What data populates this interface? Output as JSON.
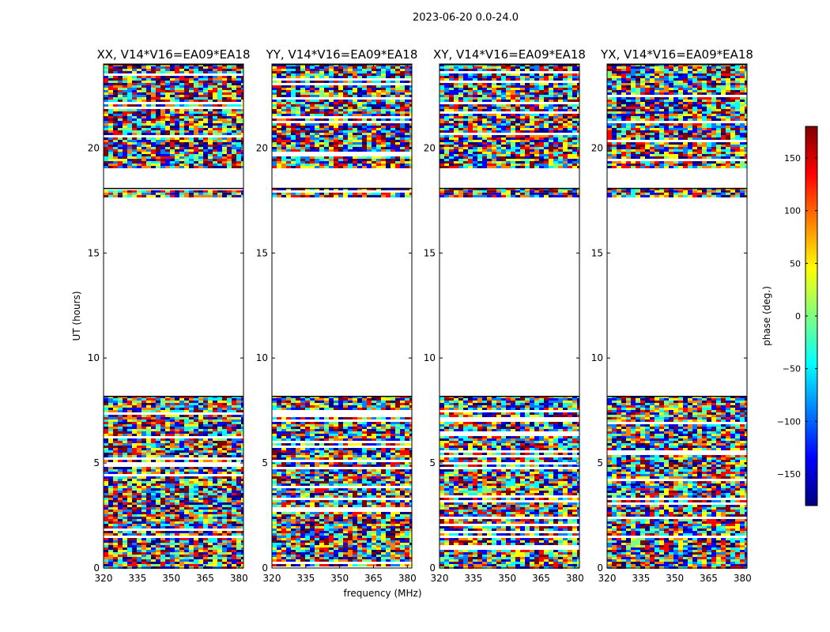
{
  "chart_data": {
    "type": "heatmap",
    "suptitle": "2023-06-20 0.0-24.0",
    "xlabel": "frequency (MHz)",
    "ylabel": "UT (hours)",
    "xlim": [
      320,
      382
    ],
    "ylim": [
      0,
      24
    ],
    "xticks": [
      320,
      335,
      350,
      365,
      380
    ],
    "yticks": [
      0,
      5,
      10,
      15,
      20
    ],
    "panels": [
      {
        "title": "XX, V14*V16=EA09*EA18",
        "polarization": "XX"
      },
      {
        "title": "YY, V14*V16=EA09*EA18",
        "polarization": "YY"
      },
      {
        "title": "XY, V14*V16=EA09*EA18",
        "polarization": "XY"
      },
      {
        "title": "YX, V14*V16=EA09*EA18",
        "polarization": "YX"
      }
    ],
    "data_ut_ranges_hours": [
      [
        0,
        8.2
      ],
      [
        17.7,
        18.1
      ],
      [
        19.1,
        24
      ]
    ],
    "colorbar": {
      "label": "phase (deg.)",
      "range": [
        -180,
        180
      ],
      "ticks": [
        -150,
        -100,
        -50,
        0,
        50,
        100,
        150
      ],
      "colormap": "jet",
      "colors": [
        "#00007f",
        "#0000ff",
        "#007fff",
        "#00ffff",
        "#7fff7f",
        "#ffff00",
        "#ff7f00",
        "#ff0000",
        "#7f0000"
      ]
    }
  }
}
